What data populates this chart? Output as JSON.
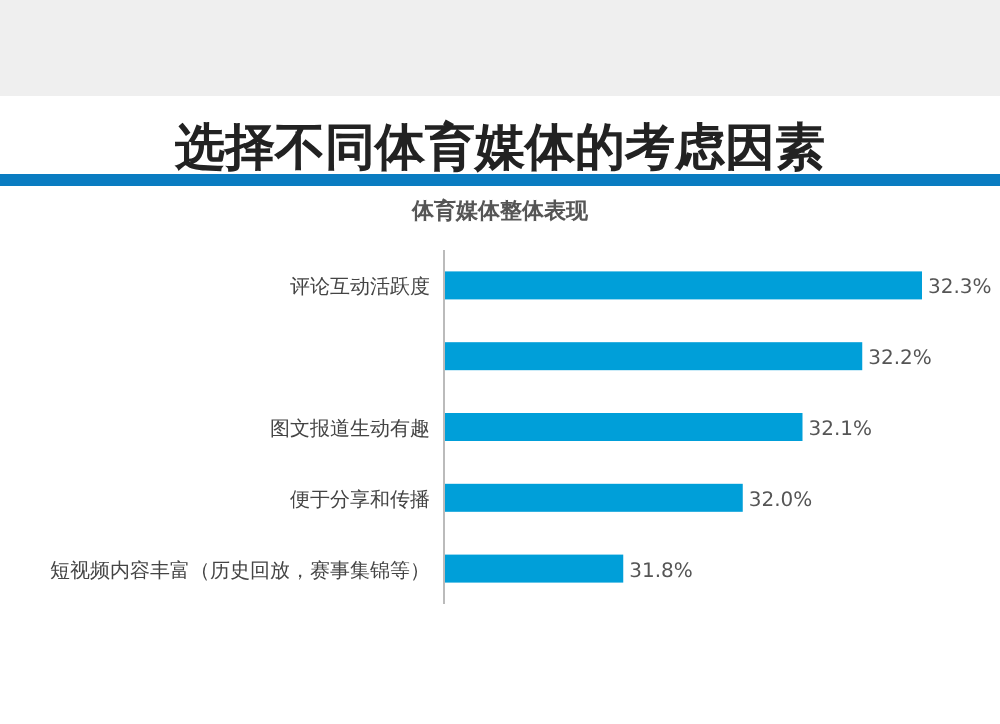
{
  "chart_data": {
    "type": "bar",
    "orientation": "horizontal",
    "title": "选择不同体育媒体的考虑因素",
    "subtitle": "体育媒体整体表现",
    "categories": [
      "评论互动活跃度",
      null,
      "图文报道生动有趣",
      "便于分享和传播",
      "短视频内容丰富（历史回放，赛事集锦等）"
    ],
    "values": [
      32.3,
      32.2,
      32.1,
      32.0,
      31.8
    ],
    "value_labels": [
      "32.3%",
      "32.2%",
      "32.1%",
      "32.0%",
      "31.8%"
    ],
    "color": "#009fd9",
    "xlim": [
      31.5,
      32.3
    ]
  }
}
